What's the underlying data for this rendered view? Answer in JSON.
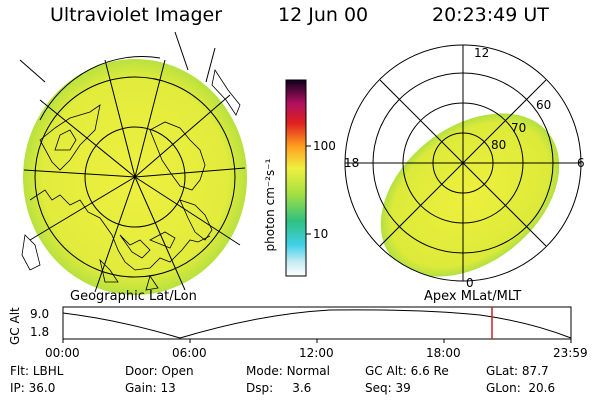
{
  "header": {
    "title": "Ultraviolet Imager",
    "date": "12 Jun 00",
    "time": "20:23:49 UT"
  },
  "captions": {
    "geographic": "Geographic Lat/Lon",
    "apex": "Apex MLat/MLT"
  },
  "colorbar": {
    "unit_label": "photon cm⁻²s⁻¹",
    "ticks": [
      "100",
      "10"
    ]
  },
  "polar": {
    "mlt_labels": {
      "top": "12",
      "left": "18",
      "right": "6",
      "bottom": "0"
    },
    "lat_labels": [
      "60",
      "70",
      "80"
    ]
  },
  "timeline": {
    "y_label": "GC Alt",
    "y_ticks": [
      "9.0",
      "1.8"
    ],
    "x_ticks": [
      "00:00",
      "06:00",
      "12:00",
      "18:00",
      "23:59"
    ],
    "marker_time": "20:23:49"
  },
  "info": {
    "flt": {
      "label": "Flt:",
      "value": "LBHL"
    },
    "ip": {
      "label": "IP:",
      "value": "36.0"
    },
    "door": {
      "label": "Door:",
      "value": "Open"
    },
    "gain": {
      "label": "Gain:",
      "value": "13"
    },
    "mode": {
      "label": "Mode:",
      "value": "Normal"
    },
    "dsp": {
      "label": "Dsp:",
      "value": "3.6"
    },
    "gcalt": {
      "label": "GC Alt:",
      "value": "6.6 Re"
    },
    "seq": {
      "label": "Seq:",
      "value": "39"
    },
    "glat": {
      "label": "GLat:",
      "value": "87.7"
    },
    "glon": {
      "label": "GLon:",
      "value": "20.6"
    }
  },
  "colors": {
    "aurora": "#e6ee3a",
    "edge": "#4fd0a0",
    "marker": "#d02020"
  }
}
